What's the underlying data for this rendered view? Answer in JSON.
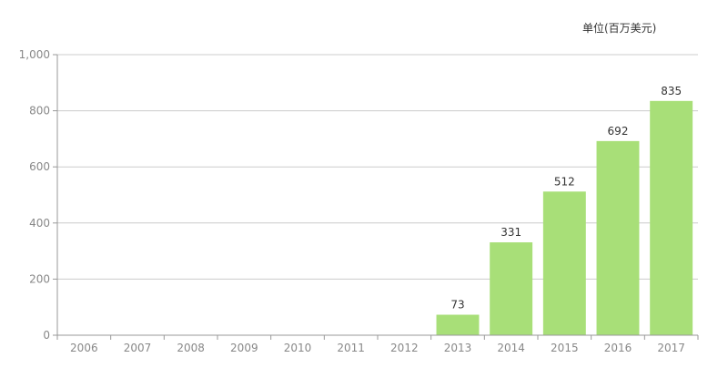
{
  "unit_label": "单位(百万美元)",
  "colors": {
    "bar": "#a8df78",
    "grid": "#cccccc",
    "axis": "#999999",
    "tick_text": "#888888",
    "value_text": "#333333"
  },
  "chart_data": {
    "type": "bar",
    "categories": [
      "2006",
      "2007",
      "2008",
      "2009",
      "2010",
      "2011",
      "2012",
      "2013",
      "2014",
      "2015",
      "2016",
      "2017"
    ],
    "values": [
      null,
      null,
      null,
      null,
      null,
      null,
      null,
      73,
      331,
      512,
      692,
      835
    ],
    "data_labels": [
      "",
      "",
      "",
      "",
      "",
      "",
      "",
      "73",
      "331",
      "512",
      "692",
      "835"
    ],
    "ylim": [
      0,
      1000
    ],
    "yticks": [
      0,
      200,
      400,
      600,
      800,
      1000
    ],
    "ytick_labels": [
      "0",
      "200",
      "400",
      "600",
      "800",
      "1,000"
    ],
    "grid": true,
    "legend": "none",
    "title": "",
    "xlabel": "",
    "ylabel": ""
  }
}
